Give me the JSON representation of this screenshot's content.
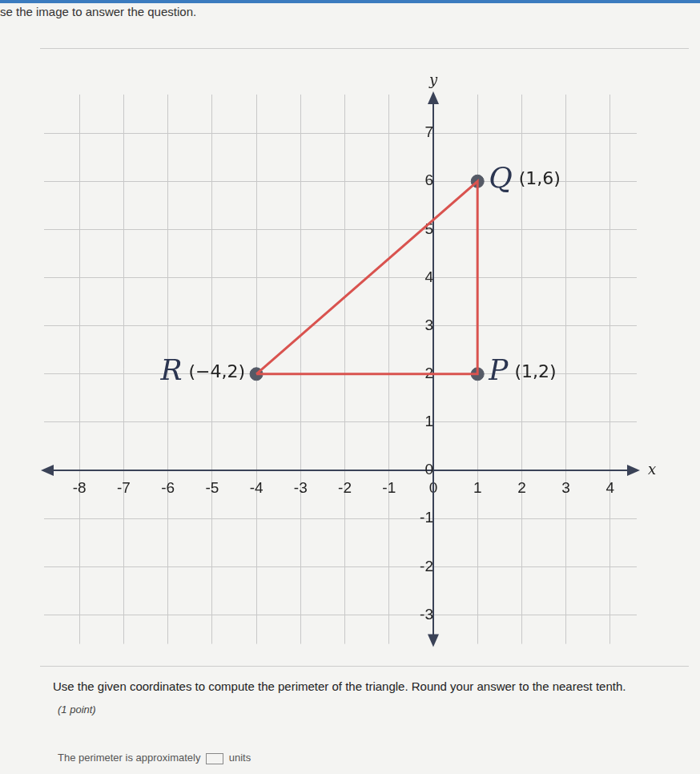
{
  "header": {
    "text": "se the image to answer the question."
  },
  "chart_data": {
    "type": "scatter",
    "x_label": "x",
    "y_label": "y",
    "points": [
      {
        "name": "R",
        "label": "(−4,2)",
        "x": -4,
        "y": 2
      },
      {
        "name": "Q",
        "label": "(1,6)",
        "x": 1,
        "y": 6
      },
      {
        "name": "P",
        "label": "(1,2)",
        "x": 1,
        "y": 2
      }
    ],
    "color": "#d9534f",
    "xlim": [
      -8.8,
      4.6
    ],
    "xticks": [
      -8,
      -7,
      -6,
      -5,
      -4,
      -3,
      -2,
      -1,
      0,
      1,
      2,
      3,
      4
    ],
    "ylim": [
      -3.6,
      7.8
    ],
    "yticks": [
      -3,
      -2,
      -1,
      0,
      1,
      2,
      3,
      4,
      5,
      6,
      7
    ],
    "grid": true
  },
  "question": {
    "text": "Use the given coordinates to compute the perimeter of the triangle. Round your answer to the nearest tenth.",
    "points": "(1 point)",
    "answer_before": "The perimeter is approximately",
    "answer_after": "units"
  }
}
